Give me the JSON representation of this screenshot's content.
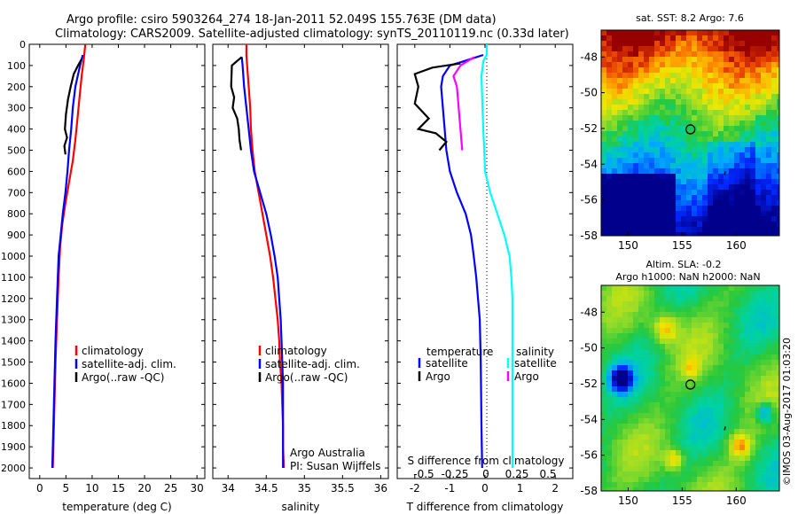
{
  "header": {
    "title1": "Argo profile: csiro 5903264_274 18-Jan-2011 52.049S 155.763E (DM data)",
    "title2": "Climatology: CARS2009. Satellite-adjusted climatology: synTS_20110119.nc (0.33d later)"
  },
  "colors": {
    "climatology": "#ff0000",
    "satellite": "#0000ff",
    "argo": "#000000",
    "satellite_s": "#00ffff",
    "argo_s": "#ff00ff"
  },
  "chart_data": [
    {
      "type": "line",
      "xlabel": "temperature (deg C)",
      "xticks": [
        0,
        5,
        10,
        15,
        20,
        25,
        30
      ],
      "xlim": [
        -2,
        31.5
      ],
      "ylim": [
        0,
        2050
      ],
      "yticks": [
        0,
        100,
        200,
        300,
        400,
        500,
        600,
        700,
        800,
        900,
        1000,
        1100,
        1200,
        1300,
        1400,
        1500,
        1600,
        1700,
        1800,
        1900,
        2000
      ],
      "legend": [
        "climatology",
        "satellite-adj. clim.",
        "Argo(..raw -QC)"
      ],
      "series": [
        {
          "name": "climatology",
          "color": "#ff0000",
          "points": [
            [
              8.7,
              0
            ],
            [
              8.4,
              70
            ],
            [
              8.0,
              150
            ],
            [
              7.6,
              250
            ],
            [
              7.2,
              350
            ],
            [
              6.8,
              450
            ],
            [
              6.3,
              550
            ],
            [
              5.6,
              650
            ],
            [
              4.9,
              750
            ],
            [
              4.3,
              850
            ],
            [
              3.9,
              950
            ],
            [
              3.6,
              1100
            ],
            [
              3.3,
              1300
            ],
            [
              3.0,
              1500
            ],
            [
              2.8,
              1700
            ],
            [
              2.6,
              1900
            ],
            [
              2.5,
              2000
            ]
          ]
        },
        {
          "name": "satellite-adj. clim.",
          "color": "#0000ff",
          "points": [
            [
              8.2,
              50
            ],
            [
              7.7,
              100
            ],
            [
              6.8,
              200
            ],
            [
              6.3,
              300
            ],
            [
              6.0,
              400
            ],
            [
              5.6,
              500
            ],
            [
              5.3,
              600
            ],
            [
              4.9,
              700
            ],
            [
              4.4,
              800
            ],
            [
              4.0,
              900
            ],
            [
              3.6,
              1000
            ],
            [
              3.3,
              1200
            ],
            [
              3.0,
              1400
            ],
            [
              2.8,
              1600
            ],
            [
              2.6,
              1800
            ],
            [
              2.4,
              2000
            ]
          ]
        },
        {
          "name": "Argo(..raw -QC)",
          "color": "#000000",
          "points": [
            [
              8.0,
              70
            ],
            [
              7.3,
              100
            ],
            [
              6.5,
              140
            ],
            [
              5.9,
              200
            ],
            [
              5.4,
              260
            ],
            [
              5.0,
              330
            ],
            [
              4.8,
              400
            ],
            [
              5.2,
              440
            ],
            [
              4.7,
              480
            ],
            [
              4.9,
              520
            ]
          ]
        }
      ]
    },
    {
      "type": "line",
      "xlabel": "salinity",
      "xticks": [
        34,
        34.5,
        35,
        35.5,
        36
      ],
      "xlim": [
        33.8,
        36.1
      ],
      "ylim": [
        0,
        2050
      ],
      "legend": [
        "climatology",
        "satellite-adj. clim.",
        "Argo(..raw -QC)"
      ],
      "annotation": [
        "Argo Australia",
        "PI: Susan Wijffels"
      ],
      "series": [
        {
          "name": "climatology",
          "color": "#ff0000",
          "points": [
            [
              34.24,
              0
            ],
            [
              34.24,
              50
            ],
            [
              34.25,
              100
            ],
            [
              34.27,
              200
            ],
            [
              34.29,
              300
            ],
            [
              34.3,
              400
            ],
            [
              34.32,
              500
            ],
            [
              34.35,
              600
            ],
            [
              34.4,
              700
            ],
            [
              34.45,
              800
            ],
            [
              34.5,
              900
            ],
            [
              34.55,
              1000
            ],
            [
              34.59,
              1100
            ],
            [
              34.62,
              1200
            ],
            [
              34.65,
              1300
            ],
            [
              34.67,
              1400
            ],
            [
              34.68,
              1500
            ],
            [
              34.7,
              1600
            ],
            [
              34.71,
              1700
            ],
            [
              34.72,
              1800
            ],
            [
              34.72,
              1900
            ],
            [
              34.73,
              2000
            ]
          ]
        },
        {
          "name": "satellite-adj. clim.",
          "color": "#0000ff",
          "points": [
            [
              34.18,
              60
            ],
            [
              34.19,
              100
            ],
            [
              34.21,
              200
            ],
            [
              34.24,
              300
            ],
            [
              34.27,
              400
            ],
            [
              34.3,
              500
            ],
            [
              34.34,
              600
            ],
            [
              34.42,
              700
            ],
            [
              34.5,
              800
            ],
            [
              34.56,
              900
            ],
            [
              34.61,
              1000
            ],
            [
              34.65,
              1100
            ],
            [
              34.67,
              1200
            ],
            [
              34.69,
              1300
            ],
            [
              34.7,
              1400
            ],
            [
              34.71,
              1500
            ],
            [
              34.72,
              1600
            ],
            [
              34.72,
              1800
            ],
            [
              34.72,
              2000
            ]
          ]
        },
        {
          "name": "Argo(..raw -QC)",
          "color": "#000000",
          "points": [
            [
              34.18,
              60
            ],
            [
              34.05,
              100
            ],
            [
              34.04,
              200
            ],
            [
              34.08,
              250
            ],
            [
              34.06,
              300
            ],
            [
              34.12,
              350
            ],
            [
              34.14,
              400
            ],
            [
              34.15,
              450
            ],
            [
              34.17,
              500
            ]
          ]
        }
      ]
    },
    {
      "type": "line",
      "xlabel": "T difference from climatology",
      "x2label": "S difference from climatology",
      "xticks": [
        -2,
        -1,
        0,
        1,
        2
      ],
      "x2ticks_labels": [
        "-0.5",
        "-0.25",
        "0",
        "0.25",
        "0.5"
      ],
      "xlim": [
        -2.5,
        2.5
      ],
      "ylim": [
        0,
        2050
      ],
      "legend_headers": [
        "temperature",
        "salinity"
      ],
      "legend_temperature": [
        "satellite",
        "Argo"
      ],
      "legend_salinity": [
        "satellite",
        "Argo"
      ],
      "series": [
        {
          "name": "satellite",
          "group": "temperature",
          "color": "#0000ff",
          "points": [
            [
              -0.05,
              50
            ],
            [
              -0.6,
              80
            ],
            [
              -1.0,
              100
            ],
            [
              -1.2,
              150
            ],
            [
              -1.25,
              200
            ],
            [
              -1.2,
              300
            ],
            [
              -1.15,
              400
            ],
            [
              -1.1,
              500
            ],
            [
              -1.0,
              600
            ],
            [
              -0.8,
              700
            ],
            [
              -0.55,
              800
            ],
            [
              -0.4,
              900
            ],
            [
              -0.32,
              1000
            ],
            [
              -0.25,
              1100
            ],
            [
              -0.2,
              1200
            ],
            [
              -0.15,
              1300
            ],
            [
              -0.12,
              1500
            ],
            [
              -0.1,
              1800
            ],
            [
              -0.08,
              2000
            ]
          ]
        },
        {
          "name": "Argo",
          "group": "temperature",
          "color": "#000000",
          "points": [
            [
              -0.7,
              90
            ],
            [
              -1.5,
              110
            ],
            [
              -2.0,
              140
            ],
            [
              -1.9,
              200
            ],
            [
              -2.0,
              280
            ],
            [
              -1.6,
              350
            ],
            [
              -1.9,
              400
            ],
            [
              -1.4,
              420
            ],
            [
              -1.1,
              460
            ],
            [
              -1.3,
              500
            ]
          ]
        },
        {
          "name": "satellite",
          "group": "salinity",
          "color": "#00ffff",
          "points": [
            [
              0.05,
              0
            ],
            [
              0.05,
              50
            ],
            [
              -0.05,
              80
            ],
            [
              -0.1,
              150
            ],
            [
              -0.08,
              250
            ],
            [
              -0.05,
              400
            ],
            [
              -0.02,
              500
            ],
            [
              0.0,
              600
            ],
            [
              0.15,
              700
            ],
            [
              0.35,
              800
            ],
            [
              0.55,
              900
            ],
            [
              0.7,
              1000
            ],
            [
              0.75,
              1100
            ],
            [
              0.78,
              1200
            ],
            [
              0.78,
              1400
            ],
            [
              0.78,
              1600
            ],
            [
              0.78,
              1800
            ],
            [
              0.78,
              2000
            ]
          ]
        },
        {
          "name": "Argo",
          "group": "salinity",
          "color": "#ff00ff",
          "points": [
            [
              -0.3,
              60
            ],
            [
              -0.7,
              100
            ],
            [
              -0.9,
              150
            ],
            [
              -0.8,
              200
            ],
            [
              -0.75,
              300
            ],
            [
              -0.7,
              400
            ],
            [
              -0.65,
              500
            ]
          ]
        }
      ]
    },
    {
      "type": "heatmap",
      "title": "sat. SST: 8.2 Argo: 7.6",
      "xticks": [
        150,
        155,
        160
      ],
      "yticks": [
        -48,
        -50,
        -52,
        -54,
        -56,
        -58
      ],
      "xlim": [
        147.5,
        164
      ],
      "ylim": [
        -58,
        -46.5
      ],
      "marker": [
        155.763,
        -52.049
      ]
    },
    {
      "type": "heatmap",
      "title1": "Altim. SLA: -0.2",
      "title2": "Argo h1000: NaN h2000: NaN",
      "xticks": [
        150,
        155,
        160
      ],
      "yticks": [
        -48,
        -50,
        -52,
        -54,
        -56,
        -58
      ],
      "xlim": [
        147.5,
        164
      ],
      "ylim": [
        -58,
        -46.5
      ],
      "marker": [
        155.763,
        -52.049
      ]
    }
  ],
  "footer": {
    "stamp": "©IMOS 03-Aug-2017 01:03:20"
  }
}
